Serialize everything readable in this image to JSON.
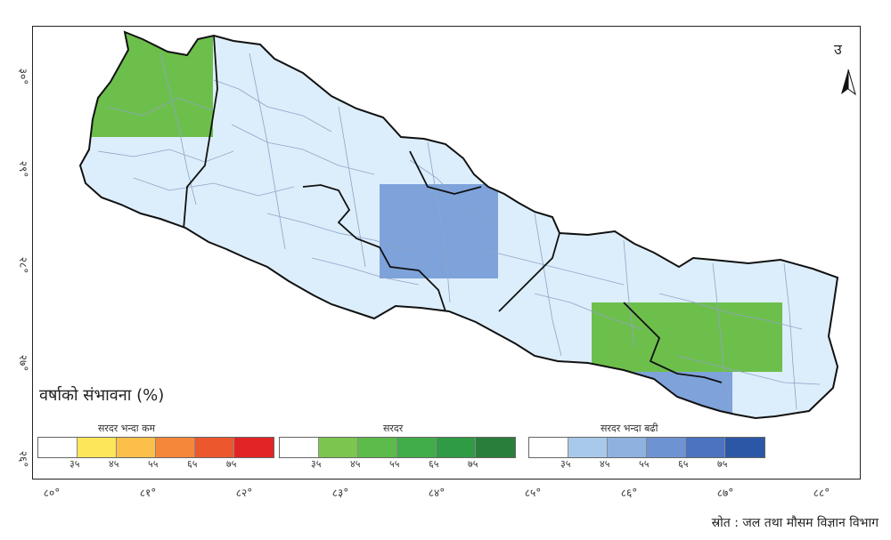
{
  "lat_labels": [
    "३०°",
    "२९°",
    "२८°",
    "२७°",
    "२६°"
  ],
  "lon_labels": [
    "८०°",
    "८१°",
    "८२°",
    "८३°",
    "८४°",
    "८५°",
    "८६°",
    "८७°",
    "८८°"
  ],
  "north": "उ",
  "legend": {
    "title": "वर्षाको संभावना (%)",
    "groups": [
      {
        "label": "सरदर भन्दा कम",
        "colors": [
          "#ffffff",
          "#fde65a",
          "#fbbf4a",
          "#f5873a",
          "#ec572e",
          "#e32424"
        ],
        "ticks": [
          "३५",
          "४५",
          "५५",
          "६५",
          "७५"
        ]
      },
      {
        "label": "सरदर",
        "colors": [
          "#ffffff",
          "#7cc54e",
          "#5dbb4b",
          "#41ad48",
          "#2f9b45",
          "#2a7e3b"
        ],
        "ticks": [
          "३५",
          "४५",
          "५५",
          "६५",
          "७५"
        ]
      },
      {
        "label": "सरदर भन्दा बढी",
        "colors": [
          "#ffffff",
          "#a9c9ea",
          "#8fb1e0",
          "#6e93d2",
          "#4b73bf",
          "#2b57a6"
        ],
        "ticks": [
          "३५",
          "४५",
          "५५",
          "६५",
          "७५"
        ]
      }
    ]
  },
  "source": "स्रोत : जल तथा मौसम विज्ञान विभाग",
  "colors": {
    "land": "#dceefb",
    "normal": "#6dbf4c",
    "above_normal": "#7ea3db",
    "border": "#111111",
    "district": "#8fa3c8"
  }
}
